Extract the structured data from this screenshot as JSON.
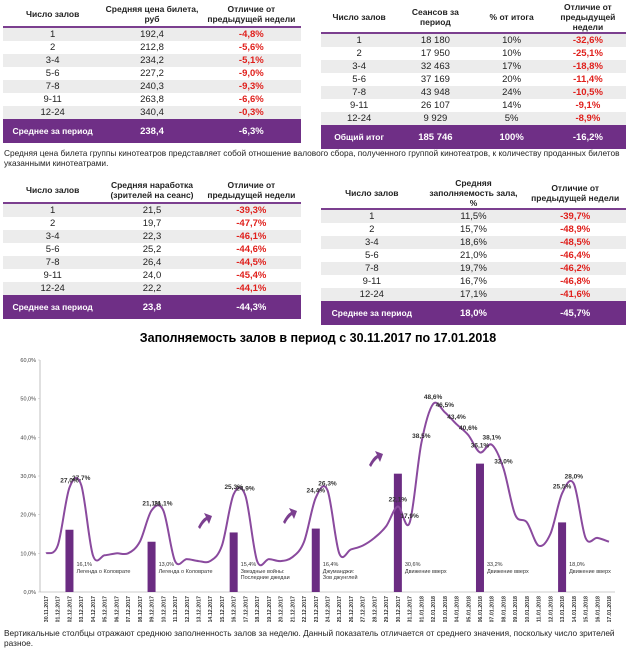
{
  "tables": [
    {
      "headers": [
        "Число залов",
        "Средняя цена билета, руб",
        "Отличие от предыдущей недели"
      ],
      "rows": [
        [
          "1",
          "192,4",
          "-4,8%"
        ],
        [
          "2",
          "212,8",
          "-5,6%"
        ],
        [
          "3-4",
          "234,2",
          "-5,1%"
        ],
        [
          "5-6",
          "227,2",
          "-9,0%"
        ],
        [
          "7-8",
          "240,3",
          "-9,3%"
        ],
        [
          "9-11",
          "263,8",
          "-6,6%"
        ],
        [
          "12-24",
          "340,4",
          "-0,3%"
        ]
      ],
      "footer": [
        "Среднее за период",
        "238,4",
        "-6,3%"
      ]
    },
    {
      "headers": [
        "Число залов",
        "Сеансов за период",
        "% от итога",
        "Отличие от предыдущей недели"
      ],
      "rows": [
        [
          "1",
          "18 180",
          "10%",
          "-32,6%"
        ],
        [
          "2",
          "17 950",
          "10%",
          "-25,1%"
        ],
        [
          "3-4",
          "32 463",
          "17%",
          "-18,8%"
        ],
        [
          "5-6",
          "37 169",
          "20%",
          "-11,4%"
        ],
        [
          "7-8",
          "43 948",
          "24%",
          "-10,5%"
        ],
        [
          "9-11",
          "26 107",
          "14%",
          "-9,1%"
        ],
        [
          "12-24",
          "9 929",
          "5%",
          "-8,9%"
        ]
      ],
      "footer": [
        "Общий итог",
        "185 746",
        "100%",
        "-16,2%"
      ]
    },
    {
      "headers": [
        "Число залов",
        "Средняя наработка (зрителей на сеанс)",
        "Отличие от предыдущей недели"
      ],
      "rows": [
        [
          "1",
          "21,5",
          "-39,3%"
        ],
        [
          "2",
          "19,7",
          "-47,7%"
        ],
        [
          "3-4",
          "22,3",
          "-46,1%"
        ],
        [
          "5-6",
          "25,2",
          "-44,6%"
        ],
        [
          "7-8",
          "26,4",
          "-44,5%"
        ],
        [
          "9-11",
          "24,0",
          "-45,4%"
        ],
        [
          "12-24",
          "22,2",
          "-44,1%"
        ]
      ],
      "footer": [
        "Среднее за период",
        "23,8",
        "-44,3%"
      ]
    },
    {
      "headers": [
        "Число залов",
        "Средняя заполняемость зала, %",
        "Отличие от предыдущей недели"
      ],
      "rows": [
        [
          "1",
          "11,5%",
          "-39,7%"
        ],
        [
          "2",
          "15,7%",
          "-48,9%"
        ],
        [
          "3-4",
          "18,6%",
          "-48,5%"
        ],
        [
          "5-6",
          "21,0%",
          "-46,4%"
        ],
        [
          "7-8",
          "19,7%",
          "-46,2%"
        ],
        [
          "9-11",
          "16,7%",
          "-46,8%"
        ],
        [
          "12-24",
          "17,1%",
          "-41,6%"
        ]
      ],
      "footer": [
        "Среднее за период",
        "18,0%",
        "-45,7%"
      ]
    }
  ],
  "note": "Средняя цена билета группы кинотеатров представляет собой отношение валового сбора, полученного группой кинотеатров, к количеству проданных билетов указанными кинотеатрами.",
  "chart_data": {
    "type": "line",
    "title": "Заполняемость залов в период с 30.11.2017 по 17.01.2018",
    "categories": [
      "30.11.2017",
      "01.12.2017",
      "02.12.2017",
      "03.12.2017",
      "04.12.2017",
      "05.12.2017",
      "06.12.2017",
      "07.12.2017",
      "08.12.2017",
      "09.12.2017",
      "10.12.2017",
      "11.12.2017",
      "12.12.2017",
      "13.12.2017",
      "14.12.2017",
      "15.12.2017",
      "16.12.2017",
      "17.12.2017",
      "18.12.2017",
      "19.12.2017",
      "20.12.2017",
      "21.12.2017",
      "22.12.2017",
      "23.12.2017",
      "24.12.2017",
      "25.12.2017",
      "26.12.2017",
      "27.12.2017",
      "28.12.2017",
      "29.12.2017",
      "30.12.2017",
      "31.12.2017",
      "01.01.2018",
      "02.01.2018",
      "03.01.2018",
      "04.01.2018",
      "05.01.2018",
      "06.01.2018",
      "07.01.2018",
      "08.01.2018",
      "09.01.2018",
      "10.01.2018",
      "11.01.2018",
      "12.01.2018",
      "13.01.2018",
      "14.01.2018",
      "15.01.2018",
      "16.01.2018",
      "17.01.2018"
    ],
    "line": {
      "color": "#8a4a9e",
      "values": [
        10,
        12,
        27.0,
        27.7,
        9.5,
        9.5,
        10,
        10,
        13,
        21.1,
        21.1,
        8,
        8.5,
        8,
        8,
        12,
        25.3,
        24.9,
        8,
        8.5,
        8,
        9,
        13,
        24.4,
        26.3,
        10,
        11,
        12,
        14,
        17,
        22.1,
        17.9,
        38.5,
        48.6,
        46.5,
        43.4,
        40.6,
        36.1,
        38.1,
        32.0,
        20,
        18,
        12,
        15,
        25.5,
        28.0,
        14,
        14,
        13
      ],
      "value_labels": [
        null,
        null,
        "27,0%",
        "27,7%",
        null,
        null,
        null,
        null,
        null,
        "21,1%",
        "21,1%",
        null,
        null,
        null,
        null,
        null,
        "25,3%",
        "24,9%",
        null,
        null,
        null,
        null,
        null,
        "24,4%",
        "26,3%",
        null,
        null,
        null,
        null,
        null,
        "22,1%",
        "17,9%",
        "38,5%",
        "48,6%",
        "46,5%",
        "43,4%",
        "40,6%",
        "36,1%",
        "38,1%",
        "32,0%",
        null,
        null,
        null,
        null,
        "25,5%",
        "28,0%",
        null,
        null,
        null
      ]
    },
    "bars": {
      "color": "#6b2c82",
      "categories": [
        "02.12.2017",
        "09.12.2017",
        "16.12.2017",
        "23.12.2017",
        "30.12.2017",
        "06.01.2018",
        "13.01.2018"
      ],
      "values": [
        16.1,
        13.0,
        15.4,
        16.4,
        30.6,
        33.2,
        18.0
      ],
      "value_labels": [
        "16,1%",
        "13,0%",
        "15,4%",
        "16,4%",
        "30,6%",
        "33,2%",
        "18,0%"
      ],
      "films": [
        [
          "Легенда о Коловрате"
        ],
        [
          "Легенда о Коловрате"
        ],
        [
          "Звездные войны:",
          "Последние джедаи"
        ],
        [
          "Джуманджи:",
          "Зов джунглей"
        ],
        [
          "Движение вверх"
        ],
        [
          "Движение вверх"
        ],
        [
          "Движение вверх"
        ]
      ]
    },
    "ylim": [
      0,
      60
    ],
    "yticks": [
      {
        "value": 0,
        "label": "0,0%"
      },
      {
        "value": 10,
        "label": "10,0%"
      },
      {
        "value": 20,
        "label": "20,0%"
      },
      {
        "value": 30,
        "label": "30,0%"
      },
      {
        "value": 40,
        "label": "40,0%"
      },
      {
        "value": 50,
        "label": "50,0%"
      },
      {
        "value": 60,
        "label": "60,0%"
      }
    ],
    "grid": false
  },
  "footnote": "Вертикальные столбцы отражают среднюю заполненность залов за неделю. Данный показатель отличается от среднего значения, поскольку число зрителей разное."
}
